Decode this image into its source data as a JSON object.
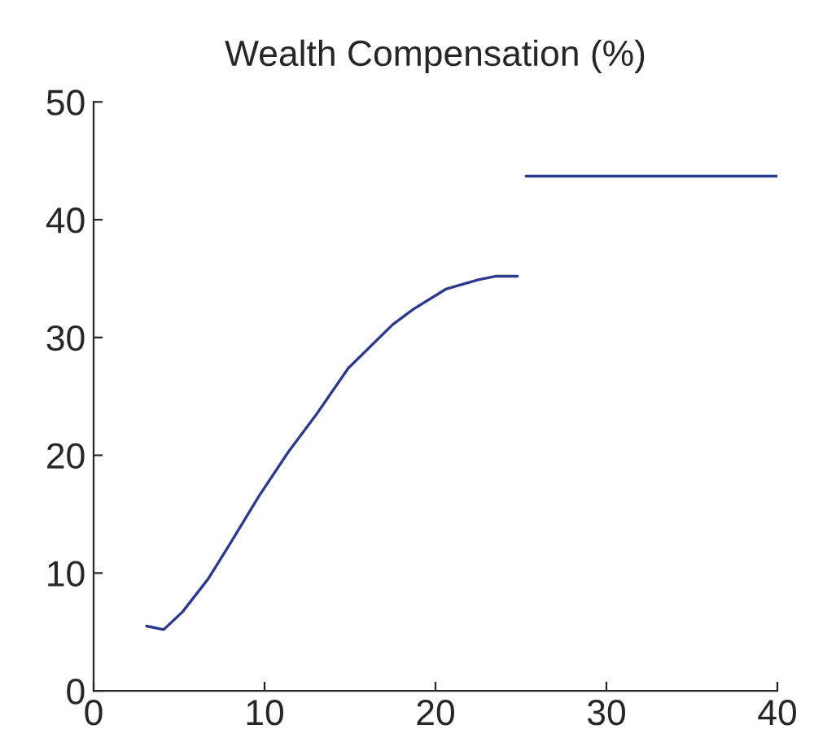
{
  "chart_data": {
    "type": "line",
    "title": "Wealth Compensation (%)",
    "series": [
      {
        "color": "#2b3a8c",
        "x": [
          3.1,
          4.1,
          5.2,
          6.7,
          7.9,
          9.7,
          11.4,
          13,
          14.9,
          17.5,
          18.7,
          20.6,
          22.5,
          23.5,
          24.8
        ],
        "values": [
          5.5,
          5.2,
          6.7,
          9.5,
          12.3,
          16.6,
          20.3,
          23.4,
          27.4,
          31.1,
          32.4,
          34.1,
          34.9,
          35.2,
          35.2
        ]
      },
      {
        "color": "#2b3a8c",
        "x": [
          25.3,
          40
        ],
        "values": [
          43.7,
          43.7
        ]
      }
    ],
    "xlim": [
      0,
      40
    ],
    "xticks": [
      0,
      10,
      20,
      30,
      40
    ],
    "ylim": [
      0,
      50
    ],
    "yticks": [
      0,
      10,
      20,
      30,
      40,
      50
    ],
    "grid": false,
    "legend": false
  }
}
